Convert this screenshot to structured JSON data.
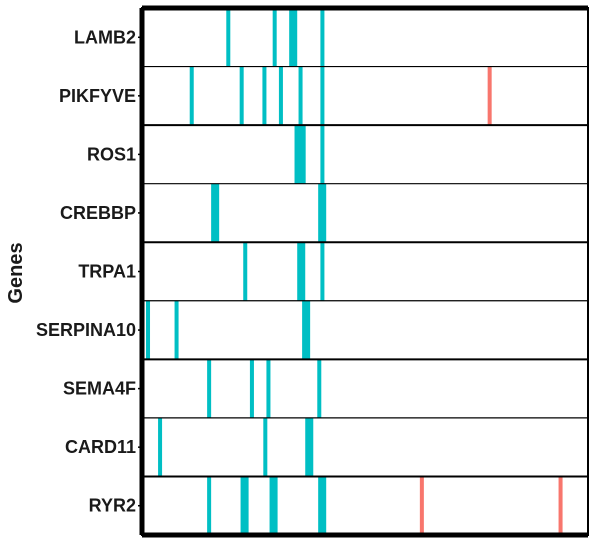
{
  "chart_data": {
    "type": "heatmap",
    "ylabel": "Genes",
    "xlabel": "",
    "title": "",
    "xlim": [
      0,
      100
    ],
    "grid": false,
    "legend": "none",
    "colors": {
      "teal": "#00bfc4",
      "salmon": "#f8766d",
      "frame": "#000000",
      "background": "#ffffff"
    },
    "genes": [
      "LAMB2",
      "PIKFYVE",
      "ROS1",
      "CREBBP",
      "TRPA1",
      "SERPINA10",
      "SEMA4F",
      "CARD11",
      "RYR2"
    ],
    "marks": [
      {
        "gene": "LAMB2",
        "x": 18.9,
        "w": 0.9,
        "color": "teal"
      },
      {
        "gene": "LAMB2",
        "x": 29.3,
        "w": 0.9,
        "color": "teal"
      },
      {
        "gene": "LAMB2",
        "x": 33.0,
        "w": 1.8,
        "color": "teal"
      },
      {
        "gene": "LAMB2",
        "x": 40.0,
        "w": 0.9,
        "color": "teal"
      },
      {
        "gene": "PIKFYVE",
        "x": 10.7,
        "w": 0.9,
        "color": "teal"
      },
      {
        "gene": "PIKFYVE",
        "x": 21.9,
        "w": 0.9,
        "color": "teal"
      },
      {
        "gene": "PIKFYVE",
        "x": 27.0,
        "w": 0.9,
        "color": "teal"
      },
      {
        "gene": "PIKFYVE",
        "x": 30.7,
        "w": 0.9,
        "color": "teal"
      },
      {
        "gene": "PIKFYVE",
        "x": 35.1,
        "w": 0.9,
        "color": "teal"
      },
      {
        "gene": "PIKFYVE",
        "x": 40.0,
        "w": 0.9,
        "color": "teal"
      },
      {
        "gene": "PIKFYVE",
        "x": 77.5,
        "w": 0.9,
        "color": "salmon"
      },
      {
        "gene": "ROS1",
        "x": 34.2,
        "w": 2.5,
        "color": "teal"
      },
      {
        "gene": "ROS1",
        "x": 40.0,
        "w": 0.9,
        "color": "teal"
      },
      {
        "gene": "CREBBP",
        "x": 15.5,
        "w": 1.8,
        "color": "teal"
      },
      {
        "gene": "CREBBP",
        "x": 39.5,
        "w": 1.8,
        "color": "teal"
      },
      {
        "gene": "TRPA1",
        "x": 22.7,
        "w": 0.9,
        "color": "teal"
      },
      {
        "gene": "TRPA1",
        "x": 34.8,
        "w": 1.8,
        "color": "teal"
      },
      {
        "gene": "TRPA1",
        "x": 40.0,
        "w": 0.9,
        "color": "teal"
      },
      {
        "gene": "SERPINA10",
        "x": 0.9,
        "w": 0.9,
        "color": "teal"
      },
      {
        "gene": "SERPINA10",
        "x": 7.3,
        "w": 0.9,
        "color": "teal"
      },
      {
        "gene": "SERPINA10",
        "x": 35.9,
        "w": 1.8,
        "color": "teal"
      },
      {
        "gene": "SEMA4F",
        "x": 14.6,
        "w": 0.9,
        "color": "teal"
      },
      {
        "gene": "SEMA4F",
        "x": 24.2,
        "w": 0.9,
        "color": "teal"
      },
      {
        "gene": "SEMA4F",
        "x": 27.9,
        "w": 0.9,
        "color": "teal"
      },
      {
        "gene": "SEMA4F",
        "x": 39.3,
        "w": 0.9,
        "color": "teal"
      },
      {
        "gene": "CARD11",
        "x": 3.6,
        "w": 0.9,
        "color": "teal"
      },
      {
        "gene": "CARD11",
        "x": 27.2,
        "w": 0.9,
        "color": "teal"
      },
      {
        "gene": "CARD11",
        "x": 36.6,
        "w": 1.8,
        "color": "teal"
      },
      {
        "gene": "RYR2",
        "x": 14.6,
        "w": 0.9,
        "color": "teal"
      },
      {
        "gene": "RYR2",
        "x": 22.1,
        "w": 1.8,
        "color": "teal"
      },
      {
        "gene": "RYR2",
        "x": 28.6,
        "w": 1.8,
        "color": "teal"
      },
      {
        "gene": "RYR2",
        "x": 39.5,
        "w": 1.8,
        "color": "teal"
      },
      {
        "gene": "RYR2",
        "x": 62.3,
        "w": 0.9,
        "color": "salmon"
      },
      {
        "gene": "RYR2",
        "x": 93.4,
        "w": 0.9,
        "color": "salmon"
      }
    ]
  }
}
